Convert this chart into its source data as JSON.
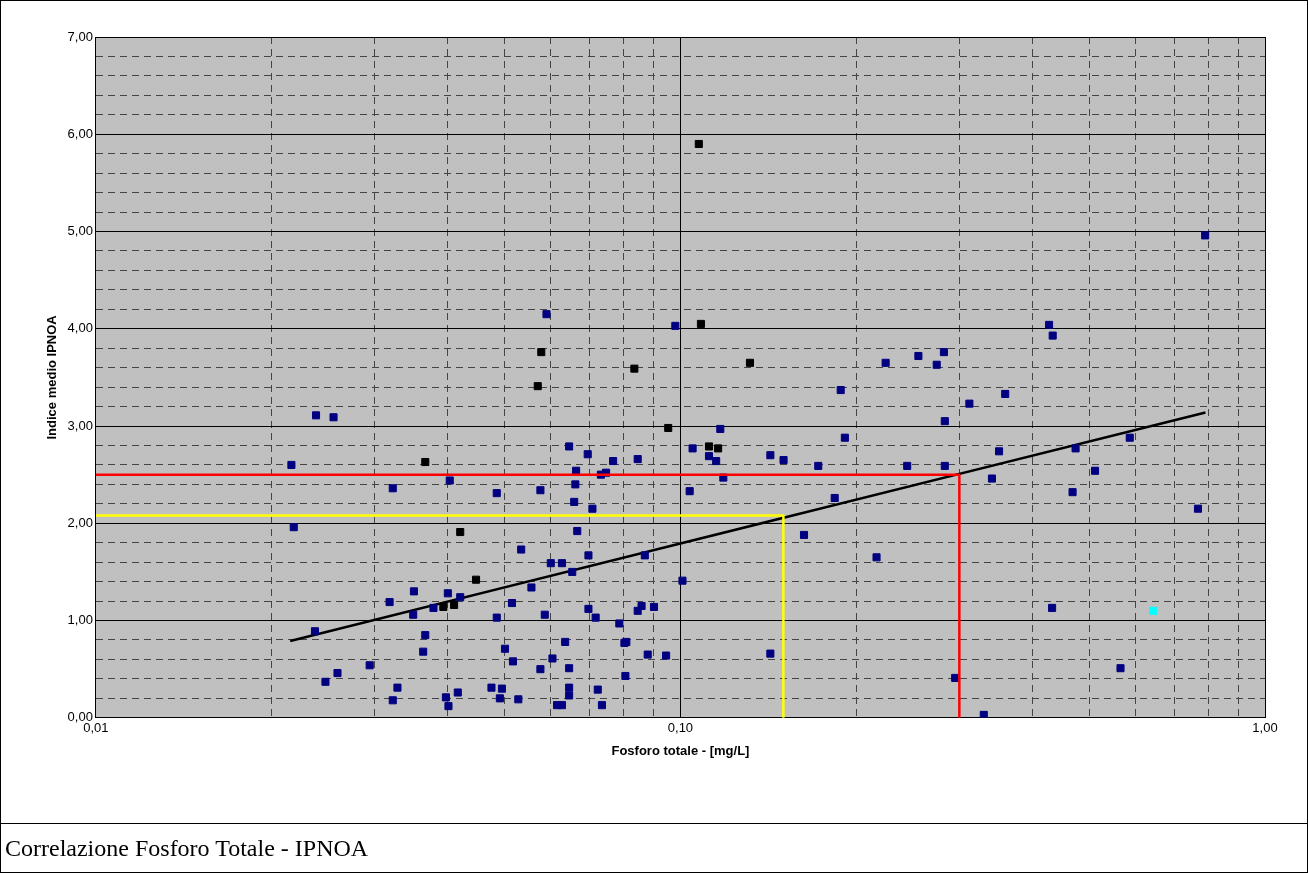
{
  "chart_data": {
    "type": "scatter",
    "title": "Correlazione Fosforo Totale - IPNOA",
    "xlabel": "Fosforo totale - [mg/L]",
    "ylabel": "Indice medio IPNOA",
    "log": "x",
    "grid": true,
    "marker": "square",
    "xlim": [
      0.01,
      1
    ],
    "ylim": [
      0,
      7
    ],
    "xticks": [
      {
        "value": 0.01,
        "label": "0,01"
      },
      {
        "value": 0.02,
        "label": null
      },
      {
        "value": 0.03,
        "label": null
      },
      {
        "value": 0.04,
        "label": null
      },
      {
        "value": 0.05,
        "label": null
      },
      {
        "value": 0.06,
        "label": null
      },
      {
        "value": 0.07,
        "label": null
      },
      {
        "value": 0.08,
        "label": null
      },
      {
        "value": 0.09,
        "label": null
      },
      {
        "value": 0.1,
        "label": "0,10"
      },
      {
        "value": 0.2,
        "label": null
      },
      {
        "value": 0.3,
        "label": null
      },
      {
        "value": 0.4,
        "label": null
      },
      {
        "value": 0.5,
        "label": null
      },
      {
        "value": 0.6,
        "label": null
      },
      {
        "value": 0.7,
        "label": null
      },
      {
        "value": 0.8,
        "label": null
      },
      {
        "value": 0.9,
        "label": null
      },
      {
        "value": 1,
        "label": "1,00"
      }
    ],
    "yticks": [
      {
        "value": 0,
        "label": "0,00"
      },
      {
        "value": 0.2,
        "label": null
      },
      {
        "value": 0.4,
        "label": null
      },
      {
        "value": 0.6,
        "label": null
      },
      {
        "value": 0.8,
        "label": null
      },
      {
        "value": 1,
        "label": "1,00"
      },
      {
        "value": 1.2,
        "label": null
      },
      {
        "value": 1.4,
        "label": null
      },
      {
        "value": 1.6,
        "label": null
      },
      {
        "value": 1.8,
        "label": null
      },
      {
        "value": 2,
        "label": "2,00"
      },
      {
        "value": 2.2,
        "label": null
      },
      {
        "value": 2.4,
        "label": null
      },
      {
        "value": 2.6,
        "label": null
      },
      {
        "value": 2.8,
        "label": null
      },
      {
        "value": 3,
        "label": "3,00"
      },
      {
        "value": 3.2,
        "label": null
      },
      {
        "value": 3.4,
        "label": null
      },
      {
        "value": 3.6,
        "label": null
      },
      {
        "value": 3.8,
        "label": null
      },
      {
        "value": 4,
        "label": "4,00"
      },
      {
        "value": 4.2,
        "label": null
      },
      {
        "value": 4.4,
        "label": null
      },
      {
        "value": 4.6,
        "label": null
      },
      {
        "value": 4.8,
        "label": null
      },
      {
        "value": 5,
        "label": "5,00"
      },
      {
        "value": 5.2,
        "label": null
      },
      {
        "value": 5.4,
        "label": null
      },
      {
        "value": 5.6,
        "label": null
      },
      {
        "value": 5.8,
        "label": null
      },
      {
        "value": 6,
        "label": "6,00"
      },
      {
        "value": 6.2,
        "label": null
      },
      {
        "value": 6.4,
        "label": null
      },
      {
        "value": 6.6,
        "label": null
      },
      {
        "value": 6.8,
        "label": null
      },
      {
        "value": 7,
        "label": "7,00"
      }
    ],
    "series": [
      {
        "type": "line",
        "marker": "none",
        "color": "#ffff00",
        "x": [
          0.01,
          0.15,
          0.15
        ],
        "values": [
          2.08,
          2.08,
          0
        ]
      },
      {
        "type": "line",
        "marker": "none",
        "color": "#ff0000",
        "x": [
          0.01,
          0.3,
          0.3
        ],
        "values": [
          2.5,
          2.5,
          0
        ]
      },
      {
        "type": "scatter",
        "color": "#000080",
        "x": [
          0.0238,
          0.0255,
          0.0216,
          0.0322,
          0.0403,
          0.0485,
          0.0576,
          0.0645,
          0.0694,
          0.0663,
          0.0661,
          0.0658,
          0.0707,
          0.0731,
          0.0746,
          0.0218,
          0.0534,
          0.0666,
          0.0696,
          0.06,
          0.0627,
          0.0653,
          0.0556,
          0.035,
          0.0318,
          0.04,
          0.042,
          0.0378,
          0.0349,
          0.0515,
          0.0485,
          0.0586,
          0.0696,
          0.0716,
          0.0237,
          0.0366,
          0.0363,
          0.0501,
          0.0635,
          0.0517,
          0.0604,
          0.0576,
          0.0645,
          0.0294,
          0.0259,
          0.0247,
          0.0328,
          0.0322,
          0.0416,
          0.0397,
          0.0401,
          0.0475,
          0.0495,
          0.0491,
          0.0528,
          0.0645,
          0.0645,
          0.0615,
          0.0627,
          0.0722,
          0.0734,
          0.059,
          0.098,
          0.1049,
          0.1119,
          0.1151,
          0.1184,
          0.1037,
          0.117,
          0.1425,
          0.1501,
          0.0767,
          0.0845,
          0.0869,
          0.1008,
          0.1627,
          0.0786,
          0.0845,
          0.0858,
          0.0901,
          0.0802,
          0.0808,
          0.0879,
          0.0945,
          0.0805,
          0.1425,
          0.79,
          0.4272,
          0.4333,
          0.2244,
          0.2553,
          0.2823,
          0.2744,
          0.188,
          0.3121,
          0.3594,
          0.2833,
          0.1911,
          0.1721,
          0.2443,
          0.2833,
          0.3508,
          0.3411,
          0.587,
          0.4742,
          0.512,
          0.4686,
          0.1836,
          0.768,
          0.2165,
          0.4323,
          0.566,
          0.2951,
          0.3303
        ],
        "values": [
          3.11,
          3.09,
          2.6,
          2.36,
          2.44,
          2.31,
          2.34,
          2.79,
          2.71,
          2.54,
          2.4,
          2.22,
          2.15,
          2.5,
          2.52,
          1.96,
          1.73,
          1.92,
          1.67,
          1.59,
          1.59,
          1.5,
          1.34,
          1.3,
          1.19,
          1.28,
          1.24,
          1.13,
          1.06,
          1.18,
          1.03,
          1.06,
          1.12,
          1.03,
          0.89,
          0.85,
          0.68,
          0.71,
          0.78,
          0.58,
          0.61,
          0.5,
          0.51,
          0.54,
          0.46,
          0.37,
          0.31,
          0.18,
          0.26,
          0.21,
          0.12,
          0.31,
          0.3,
          0.2,
          0.19,
          0.31,
          0.23,
          0.13,
          0.13,
          0.29,
          0.13,
          4.15,
          4.03,
          2.77,
          2.69,
          2.64,
          2.47,
          2.33,
          2.97,
          2.7,
          2.65,
          2.64,
          2.66,
          1.67,
          1.41,
          1.88,
          0.97,
          1.1,
          1.15,
          1.14,
          0.77,
          0.78,
          0.65,
          0.64,
          0.43,
          0.66,
          4.96,
          4.04,
          3.93,
          3.65,
          3.72,
          3.76,
          3.63,
          3.37,
          3.23,
          3.33,
          3.05,
          2.88,
          2.59,
          2.59,
          2.59,
          2.74,
          2.46,
          2.88,
          2.77,
          2.54,
          2.32,
          2.26,
          2.15,
          1.65,
          1.13,
          0.51,
          0.41,
          0.03
        ]
      },
      {
        "type": "scatter",
        "color": "#000000",
        "x": [
          0.0366,
          0.057,
          0.0578,
          0.0834,
          0.1315,
          0.1075,
          0.1084,
          0.0953,
          0.1119,
          0.116,
          0.042,
          0.0447,
          0.0393,
          0.041
        ],
        "values": [
          2.63,
          3.41,
          3.76,
          3.59,
          3.65,
          5.9,
          4.05,
          2.98,
          2.79,
          2.77,
          1.91,
          1.42,
          1.14,
          1.16
        ]
      },
      {
        "type": "scatter",
        "color": "#00ffff",
        "x": [
          0.644
        ],
        "values": [
          1.1
        ]
      },
      {
        "type": "line",
        "marker": "none",
        "color": "#000000",
        "x": [
          0.0215,
          0.791
        ],
        "values": [
          0.79,
          3.14
        ]
      }
    ]
  }
}
